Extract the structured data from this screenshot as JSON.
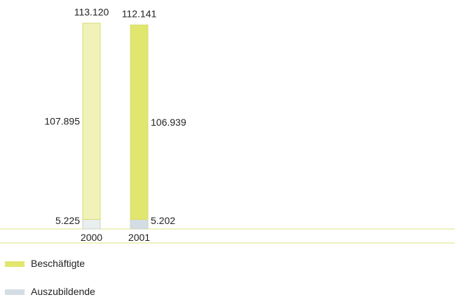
{
  "chart_data": {
    "type": "bar",
    "stacked": true,
    "categories": [
      "2000",
      "2001"
    ],
    "totals": [
      113.12,
      112.141
    ],
    "total_labels": [
      "113.120",
      "112.141"
    ],
    "series": [
      {
        "name": "Auszubildende",
        "values": [
          5.225,
          5.202
        ],
        "labels": [
          "5.225",
          "5.202"
        ],
        "colors": [
          "#e9eeef",
          "#d4dde3"
        ],
        "stroke": "#cbd3c4"
      },
      {
        "name": "Beschäftigte",
        "values": [
          107.895,
          106.939
        ],
        "labels": [
          "107.895",
          "106.939"
        ],
        "colors": [
          "#f0f2b8",
          "#e1e66e"
        ],
        "stroke": "#d7de74"
      }
    ],
    "ylim": [
      0,
      113.12
    ],
    "grid": false,
    "legend": {
      "placement": "bottom-left",
      "items": [
        {
          "label": "Beschäftigte",
          "color": "#e1e66e"
        },
        {
          "label": "Auszubildende",
          "color": "#d4dde3"
        }
      ]
    },
    "axis_color": "#dfe47c"
  }
}
